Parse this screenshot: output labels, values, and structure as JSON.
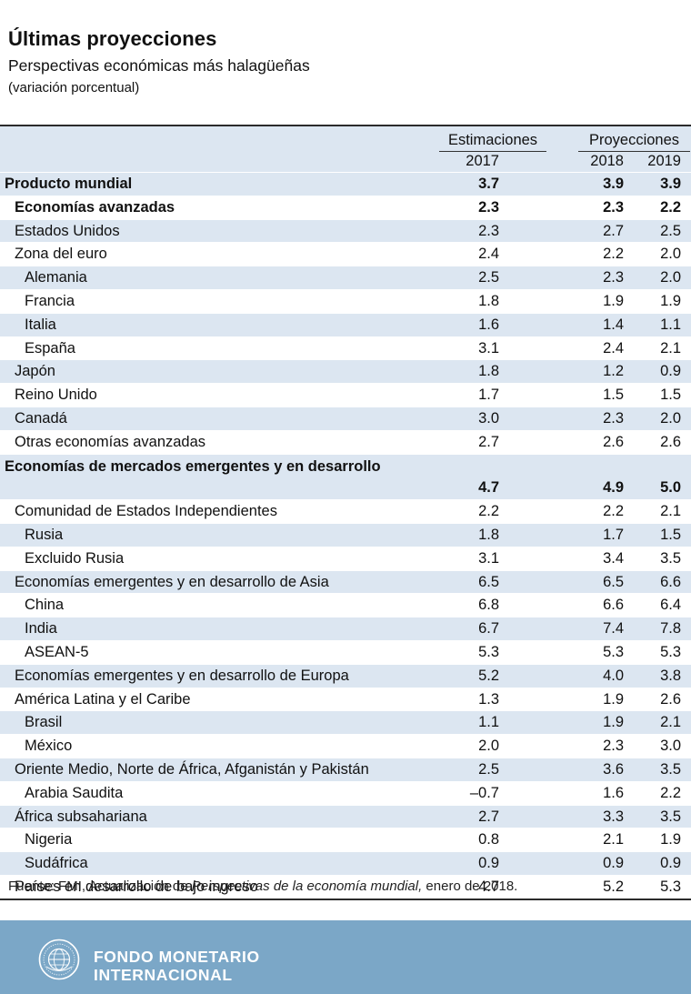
{
  "header": {
    "title": "Últimas proyecciones",
    "subtitle": "Perspectivas económicas más halagüeñas",
    "units": "(variación porcentual)"
  },
  "table": {
    "group_estimates": "Estimaciones",
    "group_projections": "Proyecciones",
    "years": [
      "2017",
      "2018",
      "2019"
    ],
    "rows": [
      {
        "name": "Producto mundial",
        "v": [
          "3.7",
          "3.9",
          "3.9"
        ]
      },
      {
        "name": "Economías avanzadas",
        "v": [
          "2.3",
          "2.3",
          "2.2"
        ]
      },
      {
        "name": "Estados Unidos",
        "v": [
          "2.3",
          "2.7",
          "2.5"
        ]
      },
      {
        "name": "Zona del euro",
        "v": [
          "2.4",
          "2.2",
          "2.0"
        ]
      },
      {
        "name": "Alemania",
        "v": [
          "2.5",
          "2.3",
          "2.0"
        ]
      },
      {
        "name": "Francia",
        "v": [
          "1.8",
          "1.9",
          "1.9"
        ]
      },
      {
        "name": "Italia",
        "v": [
          "1.6",
          "1.4",
          "1.1"
        ]
      },
      {
        "name": "España",
        "v": [
          "3.1",
          "2.4",
          "2.1"
        ]
      },
      {
        "name": "Japón",
        "v": [
          "1.8",
          "1.2",
          "0.9"
        ]
      },
      {
        "name": "Reino Unido",
        "v": [
          "1.7",
          "1.5",
          "1.5"
        ]
      },
      {
        "name": "Canadá",
        "v": [
          "3.0",
          "2.3",
          "2.0"
        ]
      },
      {
        "name": "Otras economías avanzadas",
        "v": [
          "2.7",
          "2.6",
          "2.6"
        ]
      },
      {
        "name": "Economías de mercados emergentes y en desarrollo",
        "v": [
          "4.7",
          "4.9",
          "5.0"
        ]
      },
      {
        "name": "Comunidad de Estados Independientes",
        "v": [
          "2.2",
          "2.2",
          "2.1"
        ]
      },
      {
        "name": "Rusia",
        "v": [
          "1.8",
          "1.7",
          "1.5"
        ]
      },
      {
        "name": "Excluido Rusia",
        "v": [
          "3.1",
          "3.4",
          "3.5"
        ]
      },
      {
        "name": "Economías emergentes y en desarrollo de Asia",
        "v": [
          "6.5",
          "6.5",
          "6.6"
        ]
      },
      {
        "name": "China",
        "v": [
          "6.8",
          "6.6",
          "6.4"
        ]
      },
      {
        "name": "India",
        "v": [
          "6.7",
          "7.4",
          "7.8"
        ]
      },
      {
        "name": "ASEAN-5",
        "v": [
          "5.3",
          "5.3",
          "5.3"
        ]
      },
      {
        "name": "Economías emergentes y en desarrollo de Europa",
        "v": [
          "5.2",
          "4.0",
          "3.8"
        ]
      },
      {
        "name": "América Latina y el Caribe",
        "v": [
          "1.3",
          "1.9",
          "2.6"
        ]
      },
      {
        "name": "Brasil",
        "v": [
          "1.1",
          "1.9",
          "2.1"
        ]
      },
      {
        "name": "México",
        "v": [
          "2.0",
          "2.3",
          "3.0"
        ]
      },
      {
        "name": "Oriente Medio, Norte de África, Afganistán y Pakistán",
        "v": [
          "2.5",
          "3.6",
          "3.5"
        ]
      },
      {
        "name": "Arabia Saudita",
        "v": [
          "–0.7",
          "1.6",
          "2.2"
        ]
      },
      {
        "name": "África subsahariana",
        "v": [
          "2.7",
          "3.3",
          "3.5"
        ]
      },
      {
        "name": "Nigeria",
        "v": [
          "0.8",
          "2.1",
          "1.9"
        ]
      },
      {
        "name": "Sudáfrica",
        "v": [
          "0.9",
          "0.9",
          "0.9"
        ]
      },
      {
        "name": "Países en desarrollo de bajo ingreso",
        "v": [
          "4.7",
          "5.2",
          "5.3"
        ]
      }
    ]
  },
  "source": {
    "prefix": "Fuente: FMI, Actualización de ",
    "publication": "Perspectivas de la economía mundial,",
    "suffix": " enero de 2018."
  },
  "footer": {
    "org_line1": "FONDO MONETARIO",
    "org_line2": "INTERNACIONAL",
    "band_color": "#7ba7c7",
    "seal_icon": "imf-seal-icon"
  }
}
